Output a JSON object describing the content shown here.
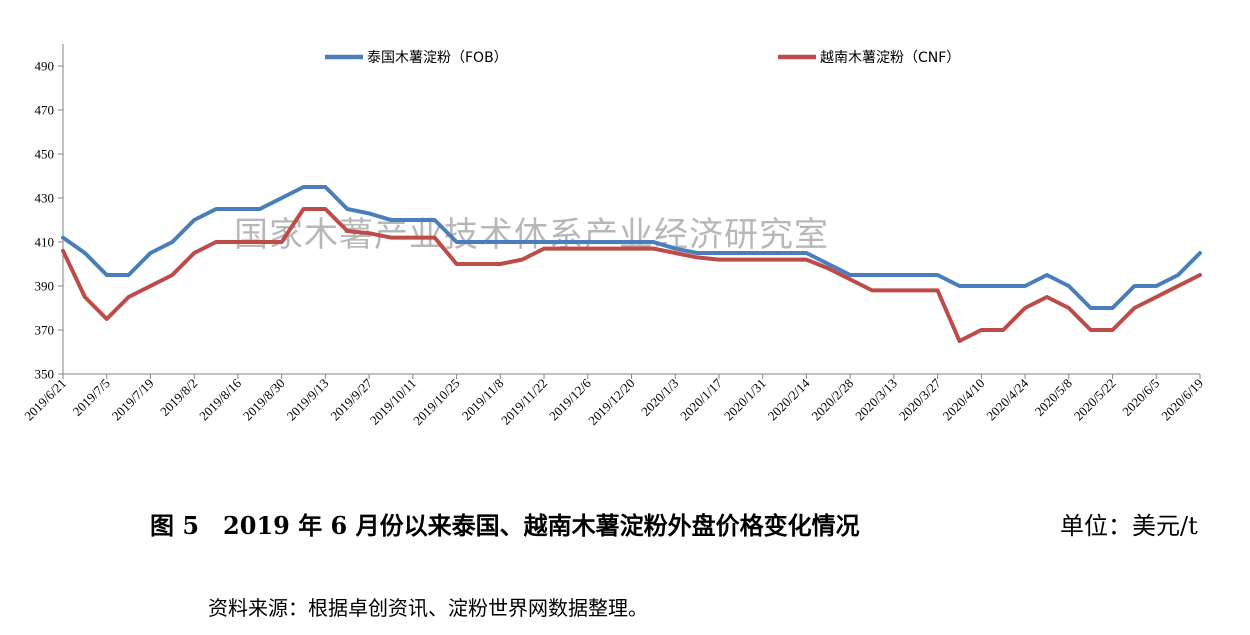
{
  "chart_data": {
    "type": "line",
    "title": "",
    "xlabel": "",
    "ylabel": "",
    "ylim": [
      350,
      500
    ],
    "yticks": [
      350,
      370,
      390,
      410,
      430,
      450,
      470,
      490
    ],
    "grid": false,
    "legend_position": "top",
    "x": [
      "2019/6/21",
      "2019/6/28",
      "2019/7/5",
      "2019/7/12",
      "2019/7/19",
      "2019/7/26",
      "2019/8/2",
      "2019/8/9",
      "2019/8/16",
      "2019/8/23",
      "2019/8/30",
      "2019/9/6",
      "2019/9/13",
      "2019/9/20",
      "2019/9/27",
      "2019/10/4",
      "2019/10/11",
      "2019/10/18",
      "2019/10/25",
      "2019/11/1",
      "2019/11/8",
      "2019/11/15",
      "2019/11/22",
      "2019/11/29",
      "2019/12/6",
      "2019/12/13",
      "2019/12/20",
      "2019/12/27",
      "2020/1/3",
      "2020/1/10",
      "2020/1/17",
      "2020/1/24",
      "2020/1/31",
      "2020/2/7",
      "2020/2/14",
      "2020/2/21",
      "2020/2/28",
      "2020/3/6",
      "2020/3/13",
      "2020/3/20",
      "2020/3/27",
      "2020/4/3",
      "2020/4/10",
      "2020/4/17",
      "2020/4/24",
      "2020/5/1",
      "2020/5/8",
      "2020/5/15",
      "2020/5/22",
      "2020/5/29",
      "2020/6/5",
      "2020/6/12",
      "2020/6/19"
    ],
    "xticks": [
      "2019/6/21",
      "2019/7/5",
      "2019/7/19",
      "2019/8/2",
      "2019/8/16",
      "2019/8/30",
      "2019/9/13",
      "2019/9/27",
      "2019/10/11",
      "2019/10/25",
      "2019/11/8",
      "2019/11/22",
      "2019/12/6",
      "2019/12/20",
      "2020/1/3",
      "2020/1/17",
      "2020/1/31",
      "2020/2/14",
      "2020/2/28",
      "2020/3/13",
      "2020/3/27",
      "2020/4/10",
      "2020/4/24",
      "2020/5/8",
      "2020/5/22",
      "2020/6/5",
      "2020/6/19"
    ],
    "series": [
      {
        "name": "泰国木薯淀粉（FOB）",
        "color": "#4a7ebb",
        "values": [
          412,
          405,
          395,
          395,
          405,
          410,
          420,
          425,
          425,
          425,
          430,
          435,
          435,
          425,
          423,
          420,
          420,
          420,
          410,
          410,
          410,
          410,
          410,
          410,
          410,
          410,
          410,
          410,
          407,
          405,
          405,
          405,
          405,
          405,
          405,
          400,
          395,
          395,
          395,
          395,
          395,
          390,
          390,
          390,
          390,
          395,
          390,
          380,
          380,
          390,
          390,
          395,
          405
        ]
      },
      {
        "name": "越南木薯淀粉（CNF）",
        "color": "#be4b48",
        "values": [
          406,
          385,
          375,
          385,
          390,
          395,
          405,
          410,
          410,
          410,
          410,
          425,
          425,
          415,
          414,
          412,
          412,
          412,
          400,
          400,
          400,
          402,
          407,
          407,
          407,
          407,
          407,
          407,
          405,
          403,
          402,
          402,
          402,
          402,
          402,
          398,
          393,
          388,
          388,
          388,
          388,
          365,
          370,
          370,
          380,
          385,
          380,
          370,
          370,
          380,
          385,
          390,
          395
        ]
      }
    ]
  },
  "watermark": "国家木薯产业技术体系产业经济研究室",
  "caption": "图 5　2019 年 6 月份以来泰国、越南木薯淀粉外盘价格变化情况",
  "unit": "单位：美元/t",
  "source": "资料来源：根据卓创资讯、淀粉世界网数据整理。"
}
